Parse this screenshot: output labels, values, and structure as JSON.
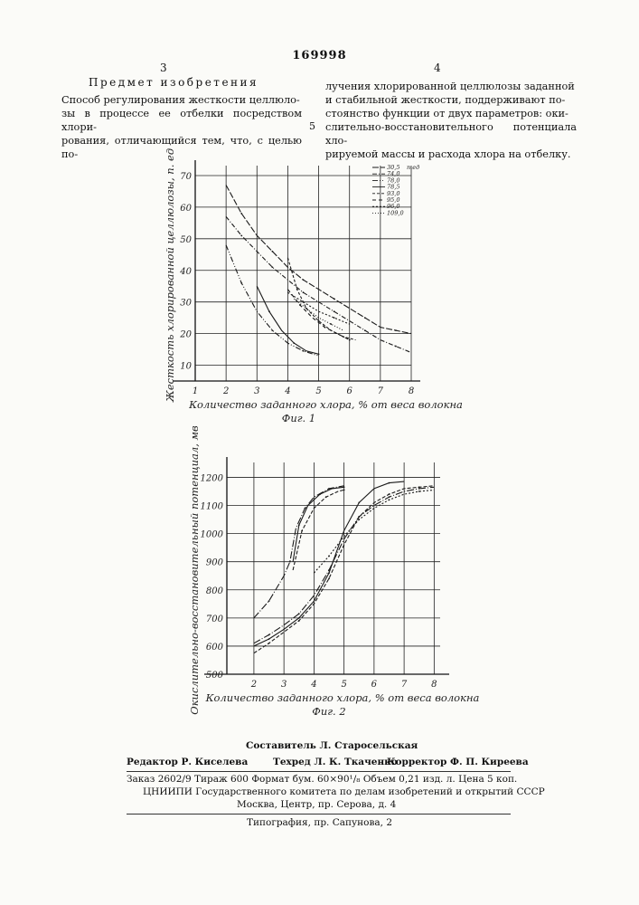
{
  "header": {
    "patent_number": "169998",
    "left_column_number": "3",
    "right_column_number": "4",
    "line_marker": "5"
  },
  "claim": {
    "heading": "Предмет изобретения",
    "left_lines": [
      "Способ регулирования жесткости целлюло-",
      "зы в процессе ее отбелки посредством хлори-",
      "рования, отличающийся тем, что, с целью по-"
    ],
    "right_lines": [
      "лучения хлорированной целлюлозы заданной",
      "и стабильной жесткости, поддерживают по-",
      "стоянство функции от двух параметров: оки-",
      "слительно-восстановительного потенциала хло-",
      "рируемой массы и расхода хлора на отбелку."
    ]
  },
  "chart_data": [
    {
      "type": "line",
      "caption": "Фиг. 1",
      "xlabel": "Количество заданного хлора, % от веса волокна",
      "ylabel": "Жесткость хлорированной целлюлозы, п. ед",
      "x_ticks": [
        "1",
        "2",
        "3",
        "4",
        "5",
        "6",
        "7",
        "8"
      ],
      "y_ticks": [
        "10",
        "20",
        "30",
        "40",
        "50",
        "60",
        "70"
      ],
      "xlim": [
        1,
        8
      ],
      "ylim": [
        5,
        72
      ],
      "grid": true,
      "legend_position": "top-right",
      "legend_unit": "п.ед",
      "legend": [
        "30,5",
        "74,0",
        "78,0",
        "78,5",
        "93,0",
        "95,0",
        "96,0",
        "109,0"
      ],
      "series": [
        {
          "name": "30,5",
          "dash": "7,2",
          "x": [
            2.0,
            2.5,
            3.0,
            3.5,
            4.0,
            4.5,
            5.0,
            5.5,
            6.0,
            6.5,
            7.0,
            7.5,
            8.0
          ],
          "y": [
            67,
            58,
            51,
            46,
            41,
            37,
            34,
            31,
            28,
            25,
            22,
            21,
            20
          ]
        },
        {
          "name": "74,0",
          "dash": "5,2,1,2",
          "x": [
            2.0,
            2.5,
            3.0,
            3.5,
            4.0,
            4.5,
            5.0,
            5.5,
            6.0,
            6.5,
            7.0,
            7.5,
            8.0
          ],
          "y": [
            57,
            51,
            46,
            41,
            37,
            33,
            30,
            27,
            24,
            21,
            18,
            16,
            14
          ]
        },
        {
          "name": "78,0",
          "dash": "6,2,1,2,1,2",
          "x": [
            2.0,
            2.5,
            3.0,
            3.5,
            4.0,
            4.5,
            5.0
          ],
          "y": [
            48,
            36,
            27,
            21,
            17,
            14.5,
            13
          ]
        },
        {
          "name": "78,5",
          "dash": "",
          "x": [
            3.0,
            3.4,
            3.8,
            4.2,
            4.6,
            5.0
          ],
          "y": [
            35,
            27,
            21,
            17,
            14.5,
            13.5
          ]
        },
        {
          "name": "93,0",
          "dash": "3,2",
          "x": [
            4.0,
            4.3,
            4.6,
            5.0,
            5.4,
            5.8,
            6.2
          ],
          "y": [
            44,
            34,
            28,
            24,
            21,
            19,
            18
          ]
        },
        {
          "name": "95,0",
          "dash": "4,3",
          "x": [
            4.0,
            4.4,
            4.8,
            5.2,
            5.6,
            6.0
          ],
          "y": [
            34,
            29,
            25,
            22,
            20,
            18
          ]
        },
        {
          "name": "96,0",
          "dash": "2,2",
          "x": [
            4.0,
            4.5,
            5.0,
            5.5,
            6.0
          ],
          "y": [
            33,
            30,
            27,
            25,
            23
          ]
        },
        {
          "name": "109,0",
          "dash": "1,2",
          "x": [
            4.2,
            4.6,
            5.0,
            5.4,
            5.8
          ],
          "y": [
            31,
            28,
            25,
            23,
            21
          ]
        }
      ]
    },
    {
      "type": "line",
      "caption": "Фиг. 2",
      "xlabel": "Количество заданного хлора, % от веса волокна",
      "ylabel": "Окислительно-восстановительный потенциал, мв",
      "x_ticks": [
        "2",
        "3",
        "4",
        "5",
        "6",
        "7",
        "8"
      ],
      "y_ticks": [
        "500",
        "600",
        "700",
        "800",
        "900",
        "1000",
        "1100",
        "1200"
      ],
      "xlim": [
        1.1,
        8.2
      ],
      "ylim": [
        500,
        1240
      ],
      "grid": true,
      "series": [
        {
          "dash": "8,2,1,2",
          "x": [
            2.0,
            2.5,
            3.0,
            3.2,
            3.4,
            3.7,
            4.0,
            4.5,
            5.0
          ],
          "y": [
            700,
            760,
            850,
            900,
            1020,
            1090,
            1130,
            1160,
            1170
          ]
        },
        {
          "dash": "",
          "x": [
            3.3,
            3.5,
            3.8,
            4.2,
            4.6,
            5.0
          ],
          "y": [
            900,
            1030,
            1100,
            1140,
            1160,
            1165
          ]
        },
        {
          "dash": "4,2",
          "x": [
            3.3,
            3.6,
            4.0,
            4.4,
            4.8,
            5.0
          ],
          "y": [
            870,
            1010,
            1090,
            1130,
            1150,
            1155
          ]
        },
        {
          "dash": "",
          "x": [
            2.0,
            2.5,
            3.0,
            3.5,
            4.0,
            4.5,
            5.0,
            5.5,
            6.0,
            6.5,
            7.0
          ],
          "y": [
            600,
            625,
            660,
            700,
            760,
            860,
            1010,
            1110,
            1160,
            1180,
            1185
          ]
        },
        {
          "dash": "4,2",
          "x": [
            2.0,
            2.5,
            3.0,
            3.5,
            4.0,
            4.5,
            5.0,
            5.5,
            6.0,
            6.5,
            7.0,
            7.5,
            8.0
          ],
          "y": [
            575,
            610,
            650,
            690,
            750,
            840,
            960,
            1060,
            1110,
            1140,
            1160,
            1165,
            1170
          ]
        },
        {
          "dash": "8,2,1,2",
          "x": [
            2.0,
            2.5,
            3.0,
            3.5,
            4.0,
            4.5,
            5.0,
            5.5,
            6.0,
            6.5,
            7.0,
            7.5,
            8.0
          ],
          "y": [
            610,
            640,
            675,
            715,
            780,
            870,
            980,
            1060,
            1100,
            1130,
            1150,
            1160,
            1165
          ]
        },
        {
          "dash": "2,2",
          "x": [
            4.0,
            4.5,
            5.0,
            5.5,
            6.0,
            6.5,
            7.0,
            7.5,
            8.0
          ],
          "y": [
            860,
            920,
            990,
            1050,
            1090,
            1120,
            1140,
            1150,
            1155
          ]
        }
      ]
    }
  ],
  "imprint": {
    "compiler": "Составитель Л. Старосельская",
    "editor": "Редактор Р. Киселева",
    "techred": "Техред Л. К. Ткаченко",
    "corrector": "Корректор Ф. П. Киреева",
    "order_line": "Заказ 2602/9 Тираж 600 Формат бум. 60×90¹/₈ Объем 0,21 изд. л. Цена 5 коп.",
    "institute": "ЦНИИПИ Государственного комитета по делам изобретений и открытий СССР",
    "address": "Москва, Центр, пр. Серова, д. 4",
    "printer": "Типография, пр. Сапунова, 2"
  }
}
